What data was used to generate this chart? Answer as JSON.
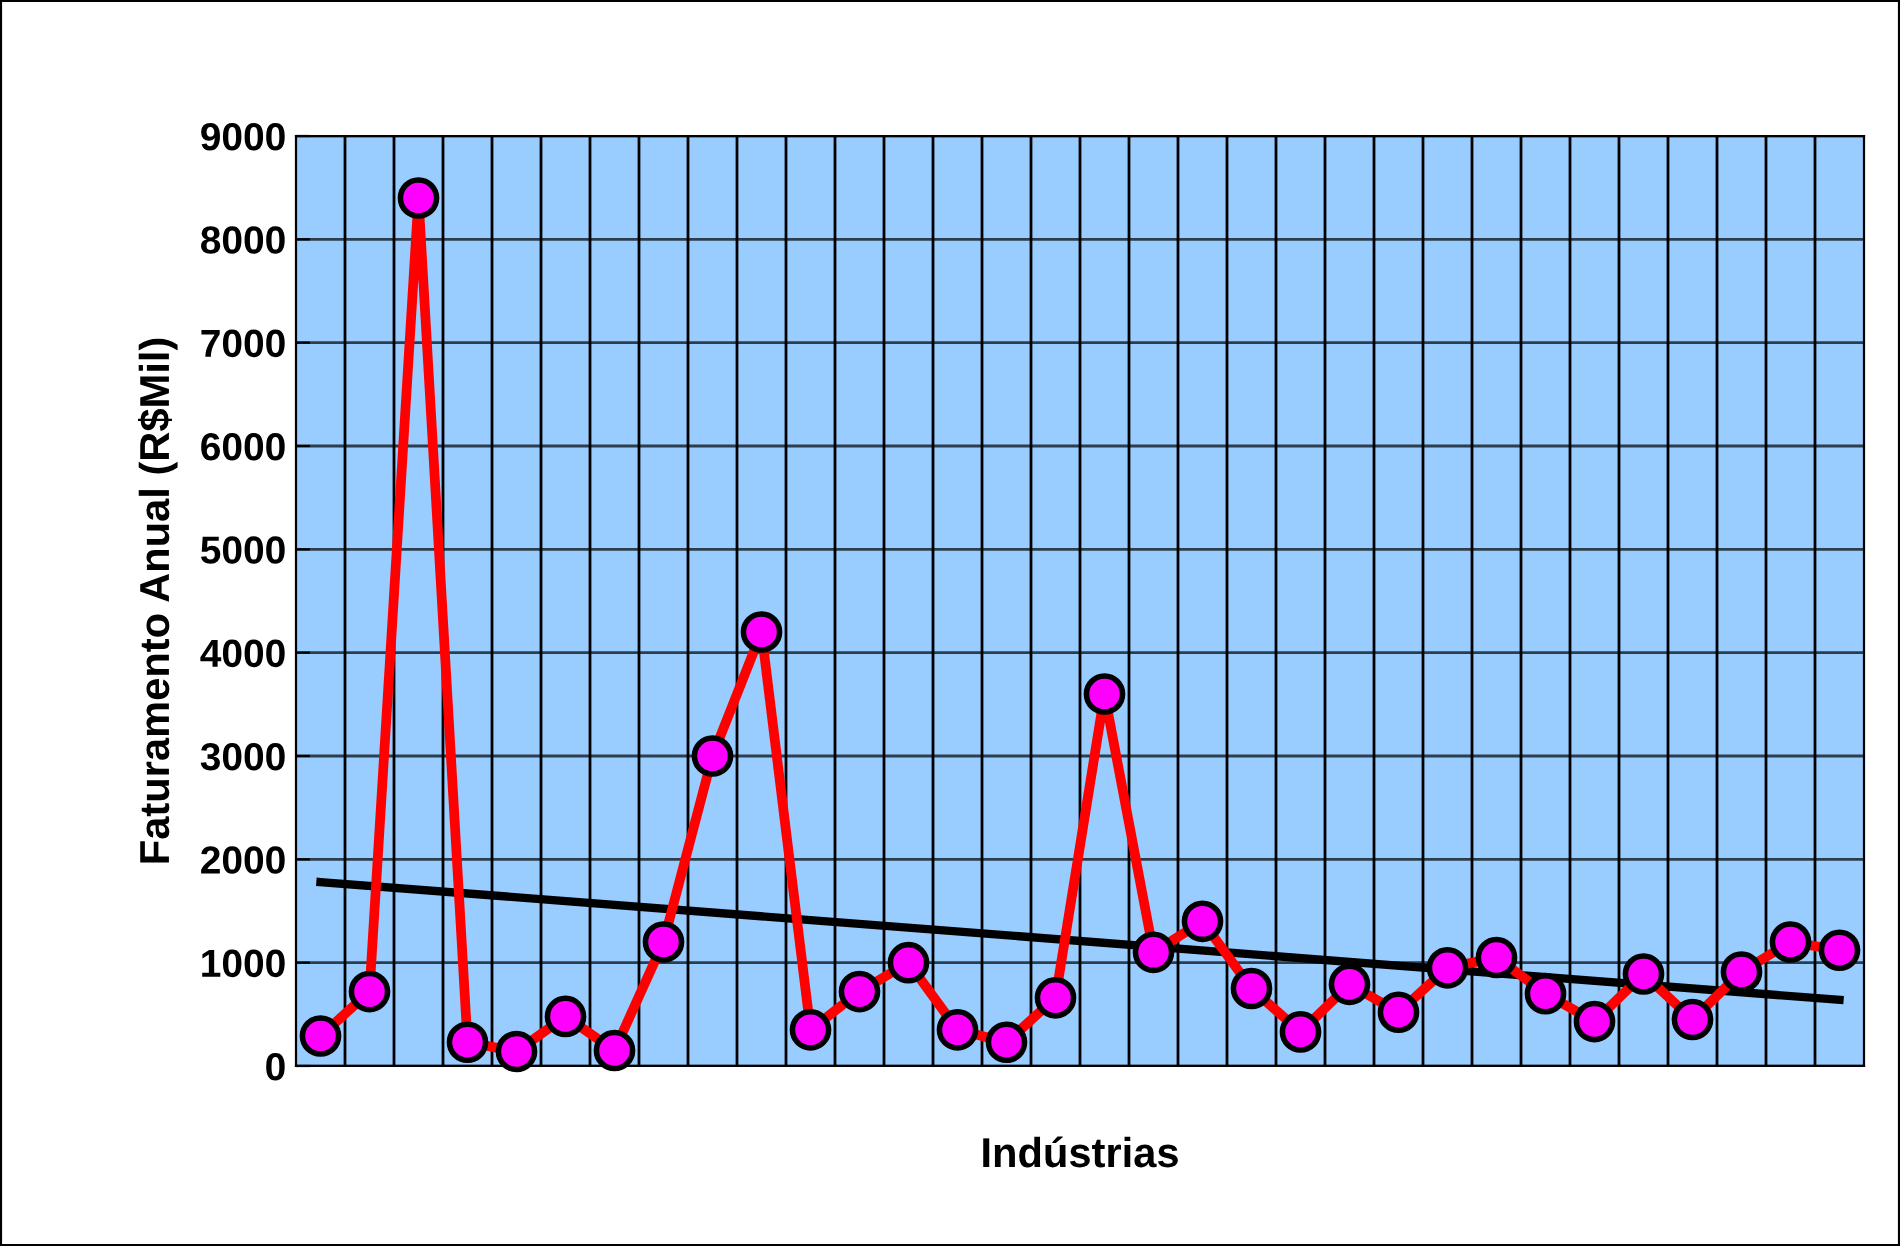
{
  "chart_data": {
    "type": "line",
    "xlabel": "Indústrias",
    "ylabel": "Faturamento Anual (R$Mil)",
    "categories": [
      null,
      null,
      null,
      null,
      null,
      null,
      null,
      null,
      null,
      null,
      null,
      null,
      null,
      null,
      null,
      null,
      null,
      null,
      null,
      null,
      null,
      null,
      null,
      null,
      null,
      null,
      null,
      null,
      null,
      null,
      null,
      null
    ],
    "series": [
      {
        "color": "#ff0000",
        "marker": "circle",
        "values": [
          290,
          720,
          8400,
          230,
          140,
          480,
          150,
          1200,
          3000,
          4200,
          350,
          720,
          1000,
          350,
          230,
          660,
          3600,
          1100,
          1400,
          750,
          330,
          790,
          520,
          950,
          1050,
          700,
          430,
          890,
          450,
          910,
          1200,
          1120
        ]
      },
      {
        "type": "line",
        "color": "#000000",
        "marker": "none",
        "values": [
          1780,
          null,
          null,
          null,
          null,
          null,
          null,
          null,
          null,
          null,
          null,
          null,
          null,
          null,
          null,
          null,
          null,
          null,
          null,
          null,
          null,
          null,
          null,
          null,
          null,
          null,
          null,
          null,
          null,
          null,
          null,
          640
        ]
      }
    ],
    "ylim": [
      0,
      9000
    ],
    "yticks": [
      0,
      1000,
      2000,
      3000,
      4000,
      5000,
      6000,
      7000,
      8000,
      9000
    ],
    "grid": true,
    "legend": false
  }
}
